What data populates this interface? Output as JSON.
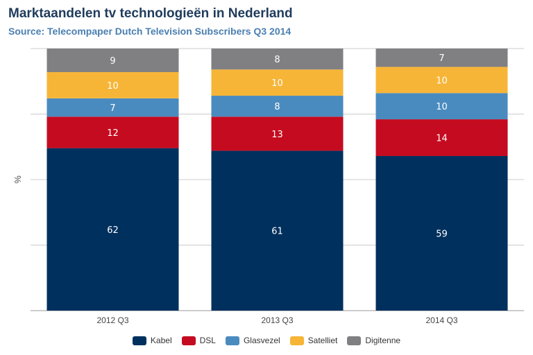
{
  "chart_data": {
    "type": "bar",
    "stacked": true,
    "title": "Marktaandelen tv technologieën in Nederland",
    "subtitle": "Source: Telecompaper Dutch Television Subscribers Q3 2014",
    "ylabel": "%",
    "xlabel": "",
    "ylim": [
      0,
      100
    ],
    "grid": true,
    "legend_position": "bottom",
    "categories": [
      "2012 Q3",
      "2013 Q3",
      "2014 Q3"
    ],
    "series": [
      {
        "name": "Kabel",
        "color": "#00305e",
        "values": [
          62,
          61,
          59
        ]
      },
      {
        "name": "DSL",
        "color": "#c50b20",
        "values": [
          12,
          13,
          14
        ]
      },
      {
        "name": "Glasvezel",
        "color": "#4a8bbf",
        "values": [
          7,
          8,
          10
        ]
      },
      {
        "name": "Satelliet",
        "color": "#f7b537",
        "values": [
          10,
          10,
          10
        ]
      },
      {
        "name": "Digitenne",
        "color": "#808083",
        "values": [
          9,
          8,
          7
        ]
      }
    ]
  }
}
